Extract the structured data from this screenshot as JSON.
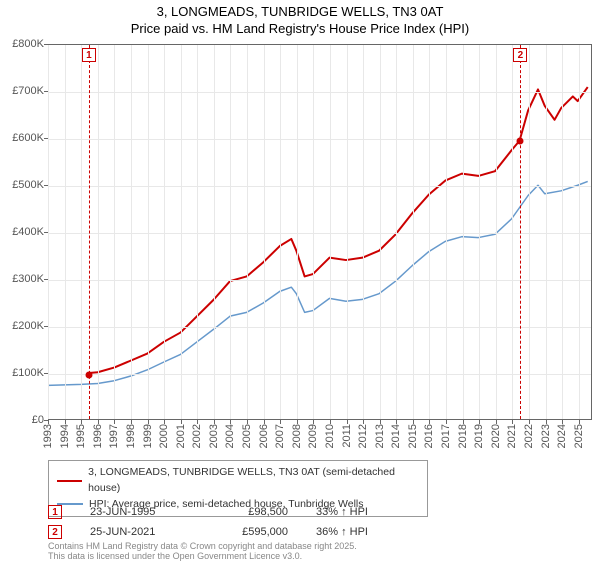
{
  "title": {
    "line1": "3, LONGMEADS, TUNBRIDGE WELLS, TN3 0AT",
    "line2": "Price paid vs. HM Land Registry's House Price Index (HPI)"
  },
  "chart": {
    "type": "line",
    "x_domain": [
      1993,
      2025.8
    ],
    "y_domain": [
      0,
      800000
    ],
    "y_ticks": [
      0,
      100000,
      200000,
      300000,
      400000,
      500000,
      600000,
      700000,
      800000
    ],
    "y_tick_labels": [
      "£0",
      "£100K",
      "£200K",
      "£300K",
      "£400K",
      "£500K",
      "£600K",
      "£700K",
      "£800K"
    ],
    "x_ticks": [
      1993,
      1994,
      1995,
      1996,
      1997,
      1998,
      1999,
      2000,
      2001,
      2002,
      2003,
      2004,
      2005,
      2006,
      2007,
      2008,
      2009,
      2010,
      2011,
      2012,
      2013,
      2014,
      2015,
      2016,
      2017,
      2018,
      2019,
      2020,
      2021,
      2022,
      2023,
      2024,
      2025
    ],
    "grid_color": "#e8e8e8",
    "background_color": "#ffffff",
    "axis_color": "#666666",
    "marker_color": "#cc0000",
    "series": {
      "price_paid": {
        "label": "3, LONGMEADS, TUNBRIDGE WELLS, TN3 0AT (semi-detached house)",
        "color": "#cc0000",
        "line_width": 2,
        "points": [
          [
            1995.47,
            98500
          ],
          [
            1996,
            100000
          ],
          [
            1997,
            110000
          ],
          [
            1998,
            125000
          ],
          [
            1999,
            140000
          ],
          [
            2000,
            165000
          ],
          [
            2001,
            185000
          ],
          [
            2002,
            220000
          ],
          [
            2003,
            255000
          ],
          [
            2004,
            295000
          ],
          [
            2005,
            305000
          ],
          [
            2006,
            335000
          ],
          [
            2007,
            370000
          ],
          [
            2007.7,
            385000
          ],
          [
            2008,
            360000
          ],
          [
            2008.5,
            305000
          ],
          [
            2009,
            310000
          ],
          [
            2010,
            345000
          ],
          [
            2011,
            340000
          ],
          [
            2012,
            345000
          ],
          [
            2013,
            360000
          ],
          [
            2014,
            395000
          ],
          [
            2015,
            440000
          ],
          [
            2016,
            480000
          ],
          [
            2017,
            510000
          ],
          [
            2018,
            525000
          ],
          [
            2019,
            520000
          ],
          [
            2020,
            530000
          ],
          [
            2021,
            575000
          ],
          [
            2021.48,
            595000
          ],
          [
            2022,
            660000
          ],
          [
            2022.6,
            705000
          ],
          [
            2023,
            670000
          ],
          [
            2023.6,
            640000
          ],
          [
            2024,
            665000
          ],
          [
            2024.7,
            690000
          ],
          [
            2025,
            680000
          ],
          [
            2025.6,
            710000
          ]
        ]
      },
      "hpi": {
        "label": "HPI: Average price, semi-detached house, Tunbridge Wells",
        "color": "#6699cc",
        "line_width": 1.5,
        "points": [
          [
            1993,
            72000
          ],
          [
            1994,
            73000
          ],
          [
            1995,
            74000
          ],
          [
            1996,
            76000
          ],
          [
            1997,
            82000
          ],
          [
            1998,
            92000
          ],
          [
            1999,
            105000
          ],
          [
            2000,
            122000
          ],
          [
            2001,
            138000
          ],
          [
            2002,
            165000
          ],
          [
            2003,
            192000
          ],
          [
            2004,
            220000
          ],
          [
            2005,
            228000
          ],
          [
            2006,
            248000
          ],
          [
            2007,
            273000
          ],
          [
            2007.7,
            282000
          ],
          [
            2008,
            268000
          ],
          [
            2008.5,
            228000
          ],
          [
            2009,
            232000
          ],
          [
            2010,
            258000
          ],
          [
            2011,
            252000
          ],
          [
            2012,
            256000
          ],
          [
            2013,
            268000
          ],
          [
            2014,
            295000
          ],
          [
            2015,
            328000
          ],
          [
            2016,
            358000
          ],
          [
            2017,
            380000
          ],
          [
            2018,
            390000
          ],
          [
            2019,
            388000
          ],
          [
            2020,
            395000
          ],
          [
            2021,
            428000
          ],
          [
            2022,
            478000
          ],
          [
            2022.6,
            500000
          ],
          [
            2023,
            482000
          ],
          [
            2024,
            488000
          ],
          [
            2025,
            500000
          ],
          [
            2025.6,
            508000
          ]
        ]
      }
    },
    "sale_markers": [
      {
        "id": "1",
        "x": 1995.47,
        "y": 98500
      },
      {
        "id": "2",
        "x": 2021.48,
        "y": 595000
      }
    ]
  },
  "legend": {
    "items": [
      {
        "color": "#cc0000",
        "label_key": "chart.series.price_paid.label"
      },
      {
        "color": "#6699cc",
        "label_key": "chart.series.hpi.label"
      }
    ]
  },
  "info_rows": [
    {
      "marker": "1",
      "date": "23-JUN-1995",
      "price": "£98,500",
      "pct": "33% ↑ HPI"
    },
    {
      "marker": "2",
      "date": "25-JUN-2021",
      "price": "£595,000",
      "pct": "36% ↑ HPI"
    }
  ],
  "footer": {
    "line1": "Contains HM Land Registry data © Crown copyright and database right 2025.",
    "line2": "This data is licensed under the Open Government Licence v3.0."
  }
}
